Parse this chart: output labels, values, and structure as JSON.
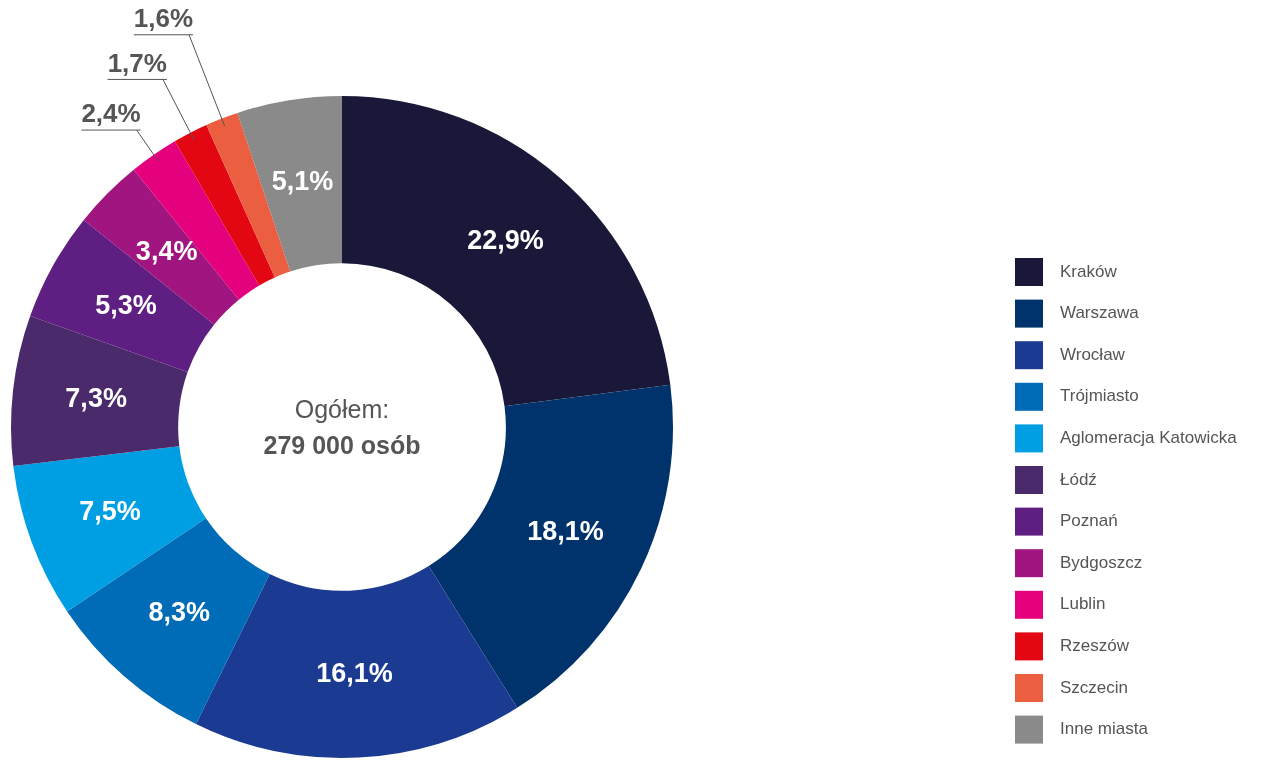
{
  "chart_data": {
    "type": "donut",
    "categories": [
      "Kraków",
      "Warszawa",
      "Wrocław",
      "Trójmiasto",
      "Aglomeracja Katowicka",
      "Łódź",
      "Poznań",
      "Bydgoszcz",
      "Lublin",
      "Rzeszów",
      "Szczecin",
      "Inne miasta"
    ],
    "values": [
      22.9,
      18.1,
      16.1,
      8.3,
      7.5,
      7.3,
      5.3,
      3.4,
      2.4,
      1.7,
      1.6,
      5.1
    ],
    "value_labels": [
      "22,9%",
      "18,1%",
      "16,1%",
      "8,3%",
      "7,5%",
      "7,3%",
      "5,3%",
      "3,4%",
      "2,4%",
      "1,7%",
      "1,6%",
      "5,1%"
    ],
    "colors": [
      "#1a1838",
      "#00336b",
      "#1b3a92",
      "#006bb6",
      "#009fe3",
      "#4a2a6a",
      "#5f1f82",
      "#a0157f",
      "#e5007e",
      "#e30613",
      "#eb5f40",
      "#8a8a8a"
    ],
    "annotations": [
      "Ogółem:",
      "279 000 osób"
    ],
    "legend": "right"
  }
}
